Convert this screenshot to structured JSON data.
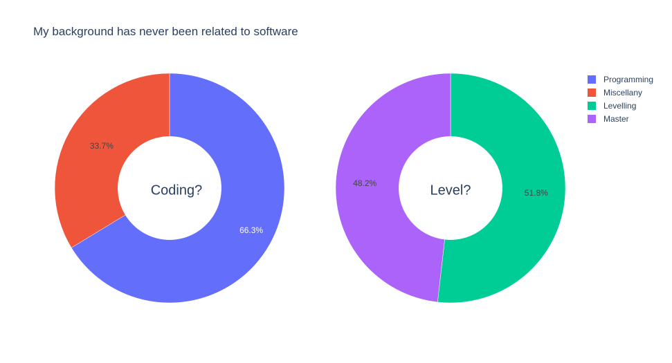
{
  "chart_data": {
    "type": "pie",
    "subtype": "donut",
    "title": "My background has never been related to software",
    "legend": {
      "placement": "top-right",
      "entries": [
        {
          "label": "Programming",
          "color": "#636efa"
        },
        {
          "label": "Miscellany",
          "color": "#ef553b"
        },
        {
          "label": "Levelling",
          "color": "#00cc96"
        },
        {
          "label": "Master",
          "color": "#ab63fa"
        }
      ]
    },
    "pies": [
      {
        "center_label": "Coding?",
        "slices": [
          {
            "label": "Programming",
            "percent": 66.3,
            "percent_text": "66.3%",
            "color": "#636efa",
            "text_color": "#ffffff"
          },
          {
            "label": "Miscellany",
            "percent": 33.7,
            "percent_text": "33.7%",
            "color": "#ef553b",
            "text_color": "#444444"
          }
        ]
      },
      {
        "center_label": "Level?",
        "slices": [
          {
            "label": "Levelling",
            "percent": 51.8,
            "percent_text": "51.8%",
            "color": "#00cc96",
            "text_color": "#444444"
          },
          {
            "label": "Master",
            "percent": 48.2,
            "percent_text": "48.2%",
            "color": "#ab63fa",
            "text_color": "#444444"
          }
        ]
      }
    ]
  }
}
